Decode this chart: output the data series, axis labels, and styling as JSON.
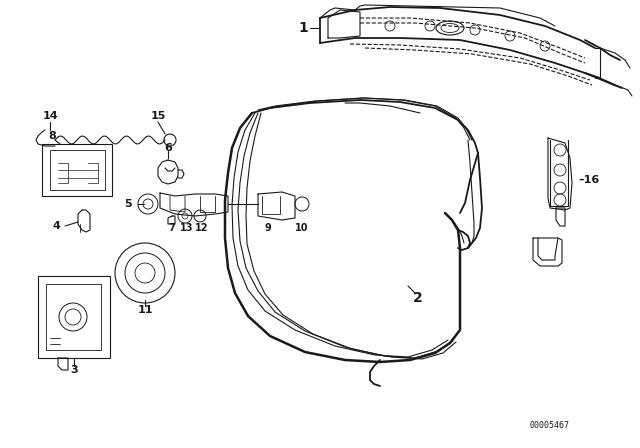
{
  "background_color": "#ffffff",
  "line_color": "#1a1a1a",
  "diagram_id": "00005467",
  "font_size_labels": 8,
  "font_size_diagram_id": 6
}
